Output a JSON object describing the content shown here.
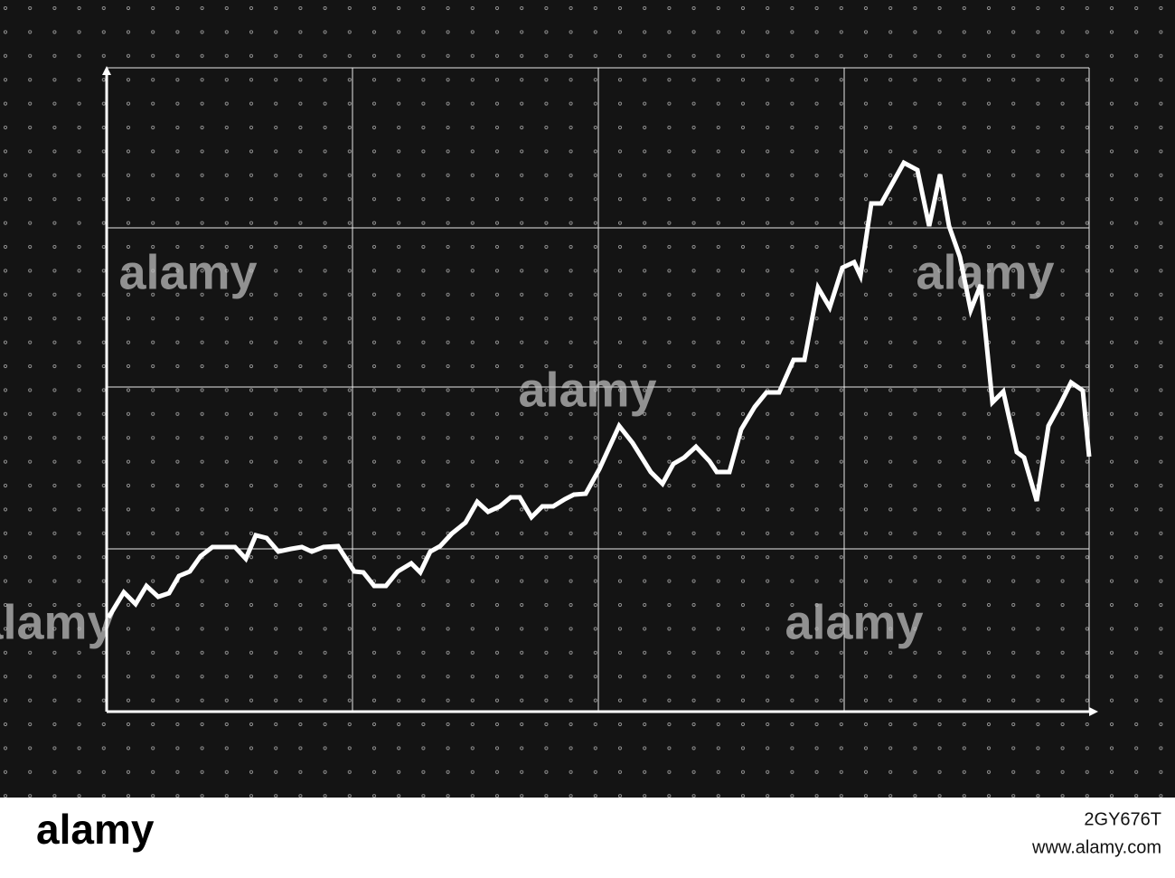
{
  "chart_data": {
    "type": "line",
    "x": [
      2,
      19,
      32,
      44,
      57,
      69,
      80,
      92,
      104,
      117,
      142,
      154,
      165,
      177,
      190,
      204,
      216,
      227,
      240,
      256,
      274,
      284,
      296,
      309,
      322,
      337,
      347,
      358,
      369,
      382,
      397,
      410,
      422,
      435,
      447,
      457,
      470,
      482,
      494,
      507,
      517,
      530,
      545,
      567,
      582,
      602,
      615,
      627,
      639,
      652,
      667,
      675,
      689,
      702,
      717,
      730,
      744,
      760,
      772,
      787,
      800,
      814,
      827,
      834,
      846,
      857,
      882,
      897,
      910,
      922,
      932,
      944,
      956,
      967,
      980,
      992,
      1007,
      1015,
      1029,
      1042,
      1054,
      1067,
      1080,
      1087
    ],
    "values": [
      104,
      132,
      119,
      139,
      127,
      131,
      150,
      155,
      172,
      182,
      182,
      169,
      195,
      192,
      177,
      180,
      182,
      177,
      182,
      183,
      155,
      154,
      139,
      139,
      155,
      164,
      154,
      177,
      183,
      197,
      209,
      232,
      221,
      227,
      237,
      237,
      215,
      227,
      227,
      235,
      240,
      241,
      268,
      316,
      297,
      265,
      252,
      274,
      281,
      293,
      277,
      265,
      265,
      312,
      337,
      353,
      353,
      389,
      389,
      469,
      447,
      491,
      497,
      482,
      562,
      562,
      607,
      599,
      537,
      594,
      537,
      503,
      444,
      472,
      342,
      354,
      287,
      281,
      233,
      316,
      338,
      364,
      355,
      282
    ],
    "color": "#ffffff",
    "xlim": [
      0,
      1087
    ],
    "xticks": [
      0,
      272,
      544,
      816,
      1087
    ],
    "ylim": [
      0,
      712
    ],
    "yticks": [
      0,
      180,
      359,
      535,
      712
    ],
    "grid": true
  },
  "watermark": "alamy",
  "footer": {
    "logo": "alamy",
    "url": "www.alamy.com",
    "id": "2GY676T"
  }
}
